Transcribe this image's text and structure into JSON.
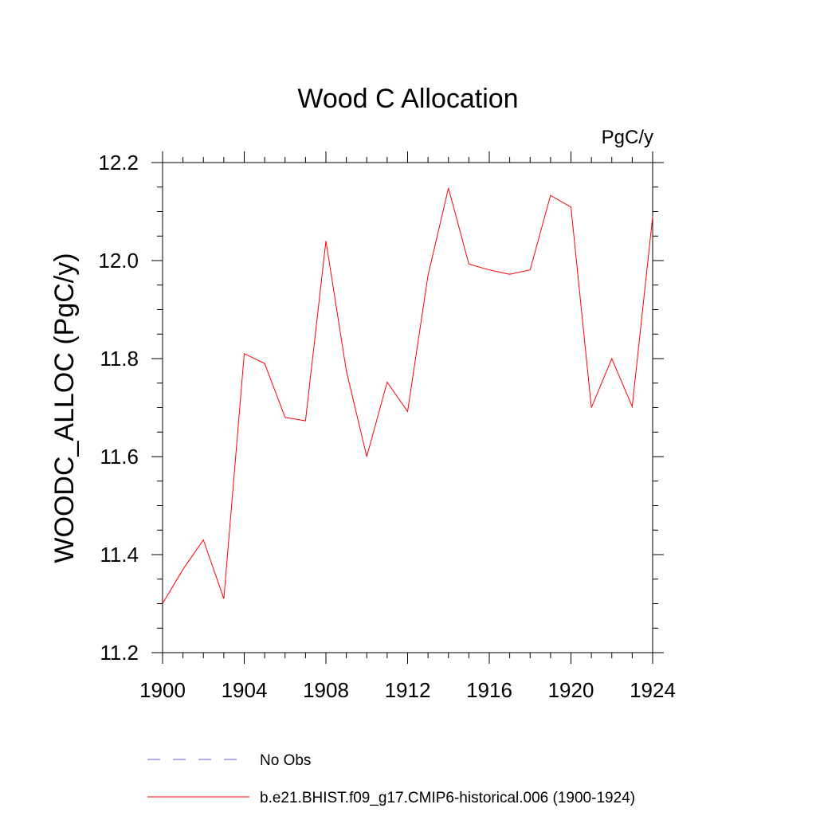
{
  "chart_data": {
    "type": "line",
    "title": "Wood C Allocation",
    "units_label": "PgC/y",
    "ylabel": "WOODC_ALLOC  (PgC/y)",
    "xlabel": "",
    "xlim": [
      1900,
      1924
    ],
    "ylim": [
      11.2,
      12.2
    ],
    "x_ticks": [
      1900,
      1904,
      1908,
      1912,
      1916,
      1920,
      1924
    ],
    "x_tick_labels": [
      "1900",
      "1904",
      "1908",
      "1912",
      "1916",
      "1920",
      "1924"
    ],
    "y_ticks": [
      11.2,
      11.4,
      11.6,
      11.8,
      12.0,
      12.2
    ],
    "y_tick_labels": [
      "11.2",
      "11.4",
      "11.6",
      "11.8",
      "12.0",
      "12.2"
    ],
    "grid": false,
    "legend_position": "bottom",
    "series": [
      {
        "name": "b.e21.BHIST.f09_g17.CMIP6-historical.006 (1900-1924)",
        "color": "#ff0000",
        "style": "solid",
        "x": [
          1900,
          1901,
          1902,
          1903,
          1904,
          1905,
          1906,
          1907,
          1908,
          1909,
          1910,
          1911,
          1912,
          1913,
          1914,
          1915,
          1916,
          1917,
          1918,
          1919,
          1920,
          1921,
          1922,
          1923,
          1924
        ],
        "y": [
          11.3,
          11.37,
          11.43,
          11.31,
          11.81,
          11.79,
          11.68,
          11.673,
          12.04,
          11.775,
          11.6,
          11.752,
          11.692,
          11.97,
          12.148,
          11.993,
          11.981,
          11.972,
          11.981,
          12.133,
          12.109,
          11.7,
          11.8,
          11.702,
          12.09
        ]
      },
      {
        "name": "No Obs",
        "color": "#6a5acd",
        "style": "dashed",
        "x": [],
        "y": []
      }
    ]
  }
}
